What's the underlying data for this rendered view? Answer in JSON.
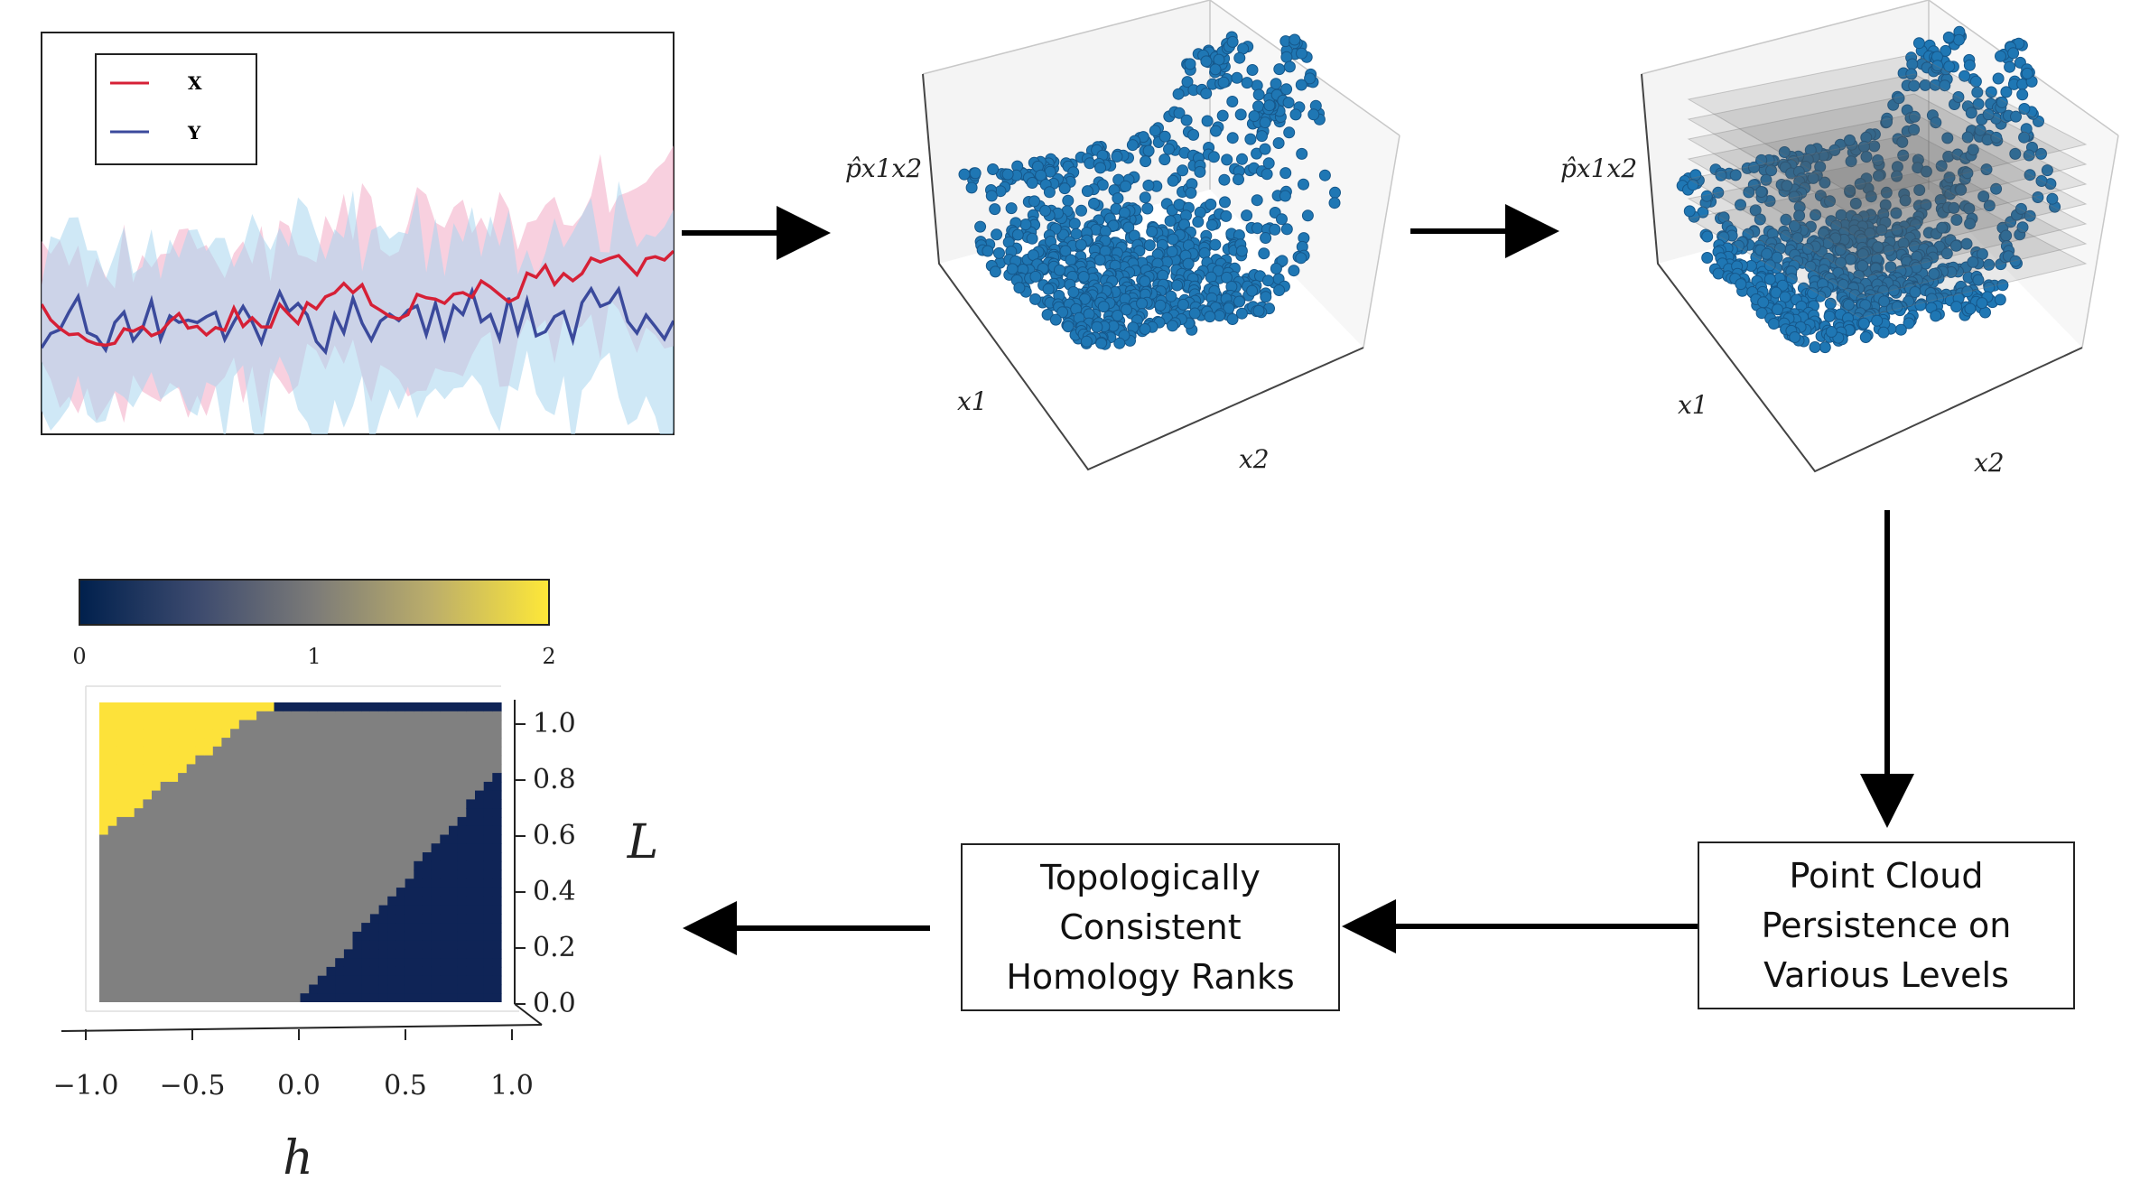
{
  "timeseries_panel": {
    "legend": [
      {
        "label": "X",
        "color": "#d62036"
      },
      {
        "label": "Y",
        "color": "#3b4a9c"
      }
    ]
  },
  "point_cloud_panel": {
    "z_label": "p̂x1x2",
    "x1_label": "x1",
    "x2_label": "x2",
    "point_color": "#1f77b4"
  },
  "sliced_point_cloud_panel": {
    "z_label": "p̂x1x2",
    "x1_label": "x1",
    "x2_label": "x2",
    "slice_count": 7
  },
  "boxes": {
    "persistence": [
      "Point Cloud",
      "Persistence on",
      "Various Levels"
    ],
    "homology": [
      "Topologically",
      "Consistent",
      "Homology Ranks"
    ]
  },
  "rank_map": {
    "colorbar_ticks": [
      "0",
      "1",
      "2"
    ],
    "colors": {
      "rank0": "#0f2456",
      "rank1": "#808080",
      "rank2": "#fde23a"
    },
    "y_ticks": [
      "0.0",
      "0.2",
      "0.4",
      "0.6",
      "0.8",
      "1.0"
    ],
    "x_ticks": [
      "−1.0",
      "−0.5",
      "0.0",
      "0.5",
      "1.0"
    ],
    "x_label": "h",
    "y_label": "L"
  }
}
